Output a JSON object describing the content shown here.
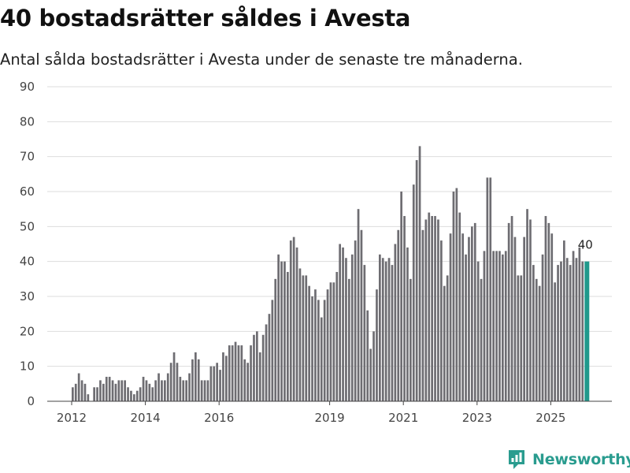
{
  "title": "40 bostadsrätter såldes i Avesta",
  "subtitle": "Antal sålda bostadsrätter i Avesta under de senaste tre månaderna.",
  "brand": {
    "name": "Newsworthy"
  },
  "colors": {
    "bar": "#6e6d72",
    "highlight": "#20998c",
    "grid": "#dddddd",
    "axis": "#444444"
  },
  "chart_data": {
    "type": "bar",
    "title": "Antal sålda bostadsrätter i Avesta",
    "xlabel": "",
    "ylabel": "",
    "ylim": [
      0,
      90
    ],
    "yticks": [
      "0",
      "10",
      "20",
      "30",
      "40",
      "50",
      "60",
      "70",
      "80",
      "90"
    ],
    "xticks": [
      "2012",
      "2014",
      "2016",
      "2019",
      "2021",
      "2023",
      "2025"
    ],
    "start_year": 2012,
    "bar_mode": "rolling three-month total, monthly",
    "values": [
      4,
      5,
      8,
      6,
      5,
      2,
      0,
      4,
      4,
      6,
      5,
      7,
      7,
      6,
      5,
      6,
      6,
      6,
      4,
      3,
      2,
      3,
      4,
      7,
      6,
      5,
      4,
      6,
      8,
      6,
      6,
      8,
      11,
      14,
      11,
      7,
      6,
      6,
      8,
      12,
      14,
      12,
      6,
      6,
      6,
      10,
      10,
      11,
      9,
      14,
      13,
      16,
      16,
      17,
      16,
      16,
      12,
      11,
      16,
      19,
      20,
      14,
      19,
      22,
      25,
      29,
      35,
      42,
      40,
      40,
      37,
      46,
      47,
      44,
      38,
      36,
      36,
      33,
      30,
      32,
      29,
      24,
      29,
      32,
      34,
      34,
      37,
      45,
      44,
      41,
      35,
      42,
      46,
      55,
      49,
      39,
      26,
      15,
      20,
      32,
      42,
      41,
      40,
      41,
      39,
      45,
      49,
      60,
      53,
      44,
      35,
      62,
      69,
      73,
      49,
      52,
      54,
      53,
      53,
      52,
      46,
      33,
      36,
      48,
      60,
      61,
      54,
      48,
      42,
      47,
      50,
      51,
      40,
      35,
      43,
      64,
      64,
      43,
      43,
      43,
      42,
      43,
      51,
      53,
      47,
      36,
      36,
      47,
      55,
      52,
      39,
      35,
      33,
      42,
      53,
      51,
      48,
      34,
      39,
      40,
      46,
      41,
      39,
      43,
      41,
      44,
      40,
      40
    ],
    "highlight_last": true,
    "last_label": "40"
  }
}
